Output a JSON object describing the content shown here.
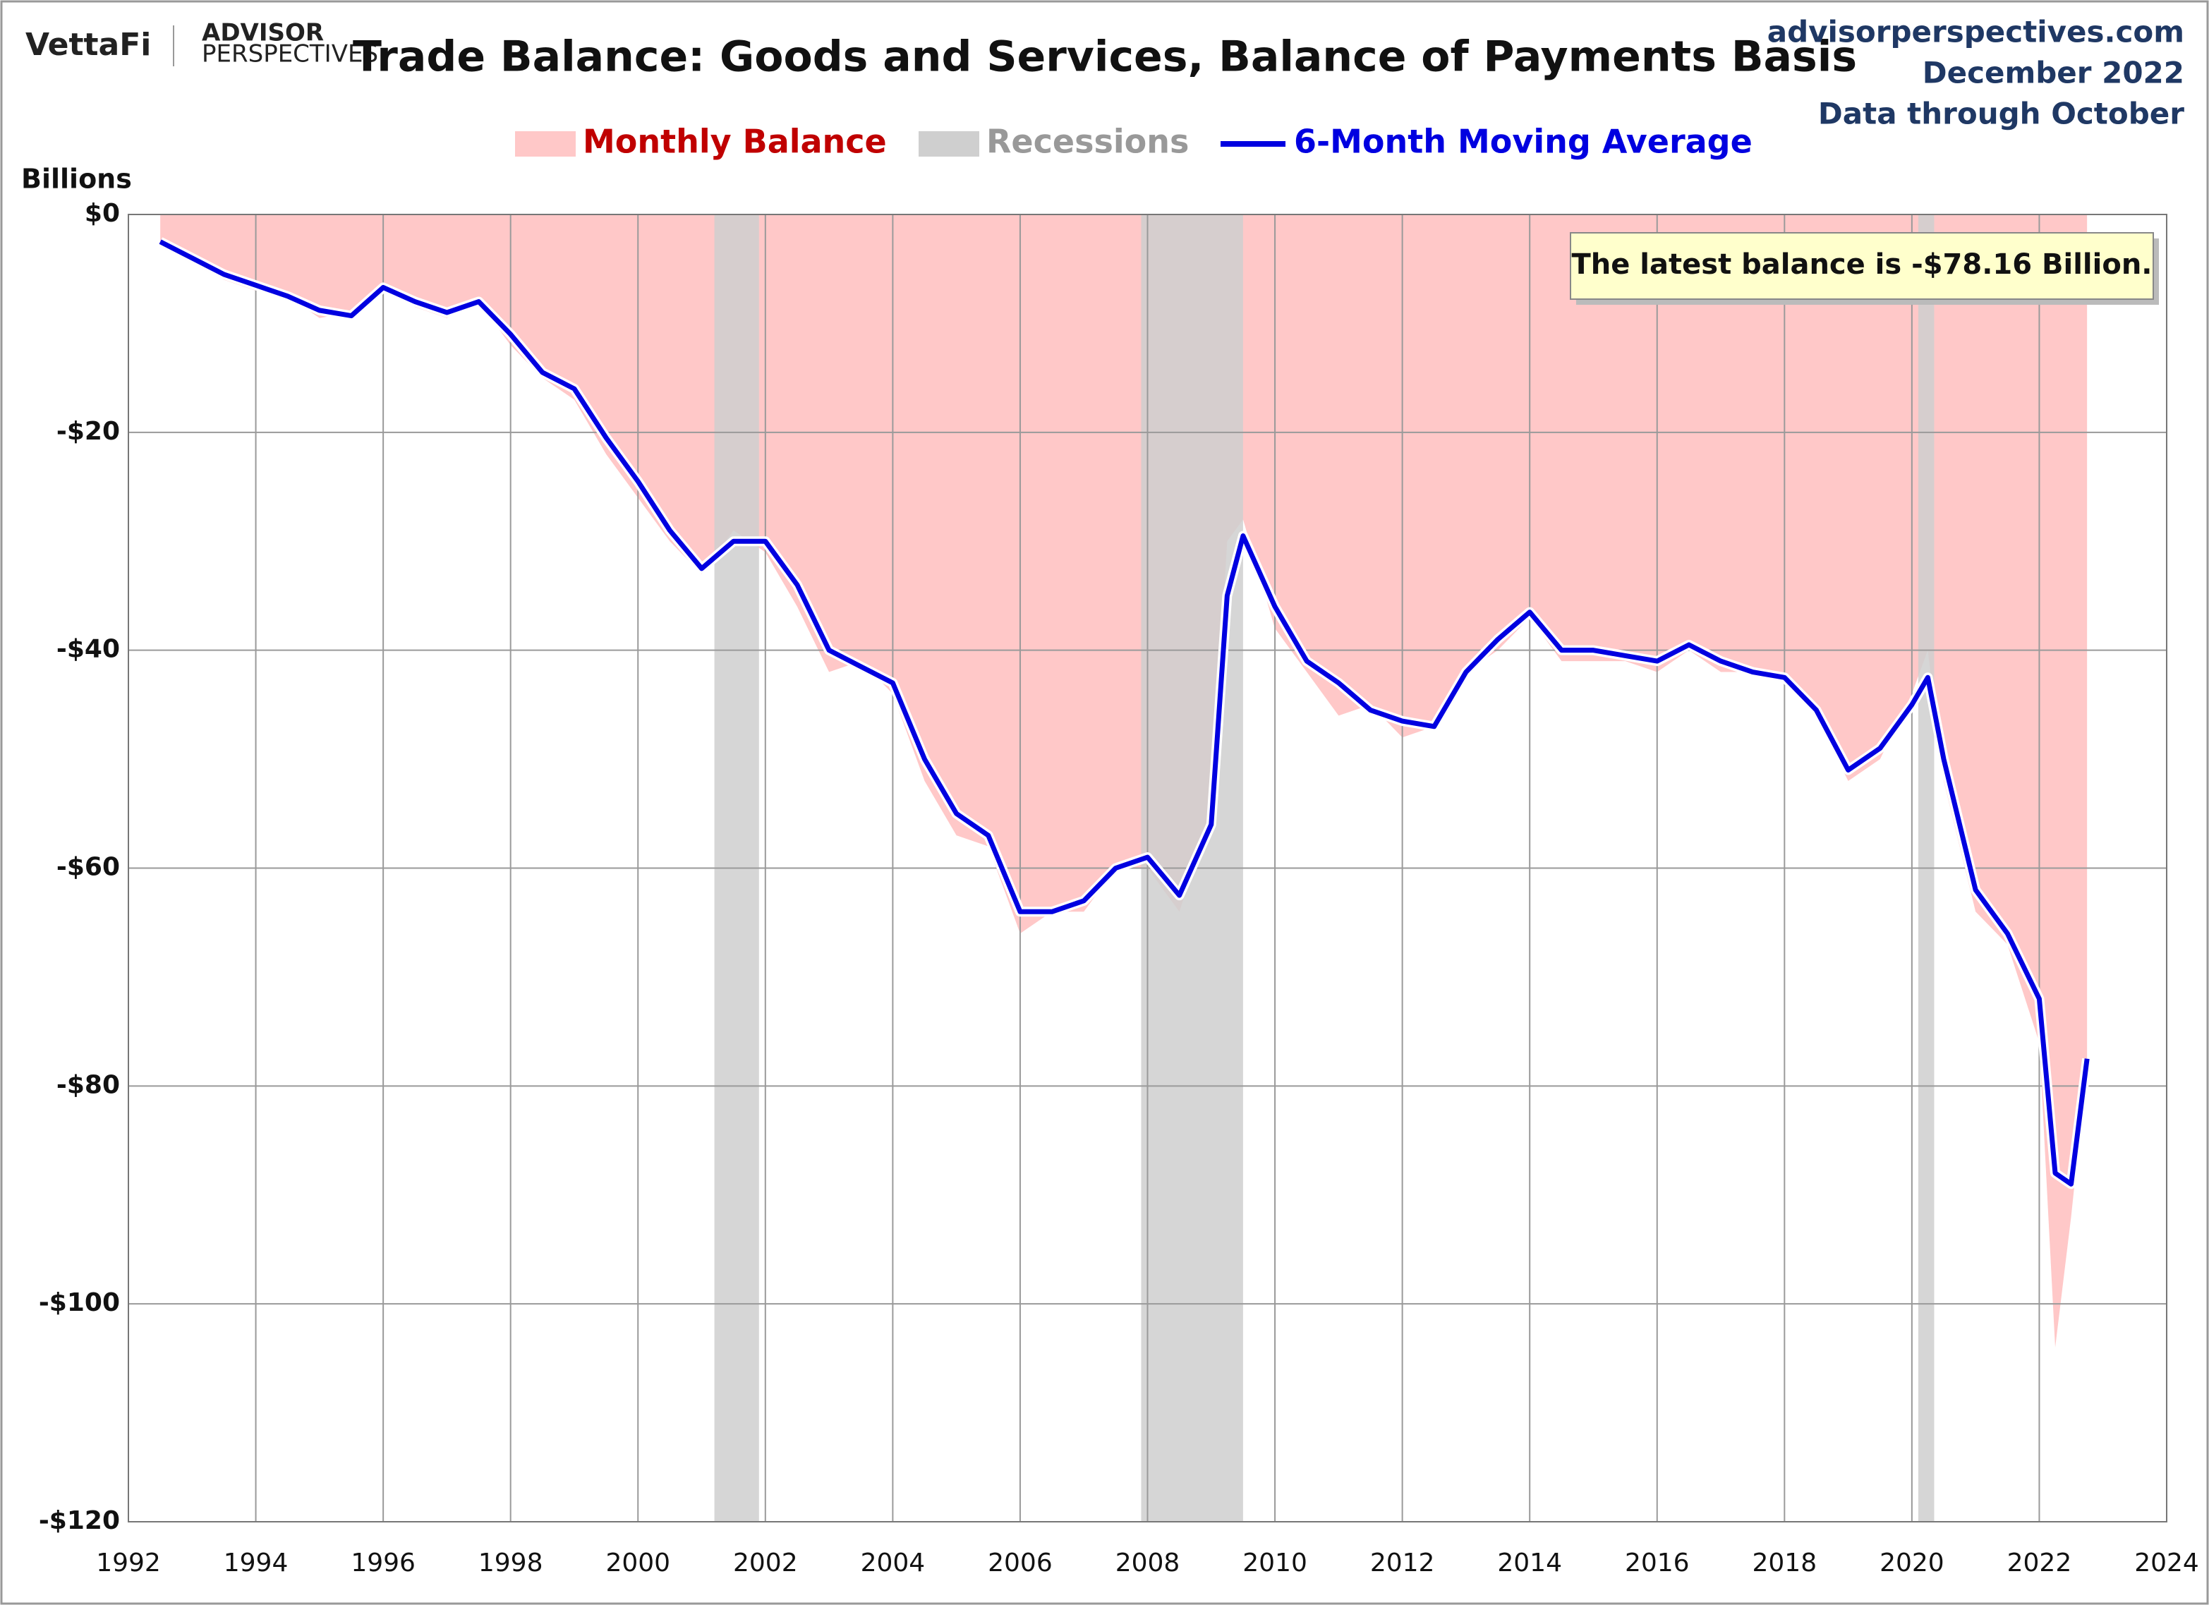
{
  "header": {
    "logo": "VettaFi",
    "brand_top": "ADVISOR",
    "brand_bottom": "PERSPECTIVES",
    "site": "advisorperspectives.com",
    "date": "December 2022",
    "note": "Data through October"
  },
  "chart_data": {
    "type": "area_line",
    "title": "Trade Balance: Goods and Services, Balance of Payments Basis",
    "y_label": "Billions",
    "annotation": "The latest balance is -$78.16 Billion.",
    "x": [
      1992.5,
      1993.0,
      1993.5,
      1994.0,
      1994.5,
      1995.0,
      1995.5,
      1996.0,
      1996.5,
      1997.0,
      1997.5,
      1998.0,
      1998.5,
      1999.0,
      1999.5,
      2000.0,
      2000.5,
      2001.0,
      2001.5,
      2002.0,
      2002.5,
      2003.0,
      2003.5,
      2004.0,
      2004.5,
      2005.0,
      2005.5,
      2006.0,
      2006.5,
      2007.0,
      2007.5,
      2008.0,
      2008.5,
      2009.0,
      2009.25,
      2009.5,
      2010.0,
      2010.5,
      2011.0,
      2011.5,
      2012.0,
      2012.5,
      2013.0,
      2013.5,
      2014.0,
      2014.5,
      2015.0,
      2015.5,
      2016.0,
      2016.5,
      2017.0,
      2017.5,
      2018.0,
      2018.5,
      2019.0,
      2019.5,
      2020.0,
      2020.25,
      2020.5,
      2021.0,
      2021.5,
      2022.0,
      2022.25,
      2022.5,
      2022.75
    ],
    "series": [
      {
        "name": "Monthly Balance",
        "color": "#ffc8c8",
        "text_color": "#c00000",
        "values": [
          -3,
          -4.5,
          -6,
          -7,
          -7.5,
          -9.5,
          -9,
          -6.5,
          -8.5,
          -9.5,
          -8,
          -12,
          -15,
          -17,
          -22,
          -26,
          -30,
          -33,
          -29,
          -31,
          -36,
          -42,
          -41,
          -44,
          -52,
          -57,
          -58,
          -66,
          -64,
          -64,
          -60,
          -60,
          -64,
          -55,
          -30,
          -28,
          -38,
          -42,
          -46,
          -45,
          -48,
          -47,
          -42,
          -40,
          -37,
          -41,
          -41,
          -41,
          -42,
          -40,
          -42,
          -42,
          -43,
          -46,
          -52,
          -50,
          -44,
          -40,
          -52,
          -64,
          -67,
          -76,
          -104,
          -92,
          -78.16
        ]
      },
      {
        "name": "6-Month Moving Average",
        "color": "#0000e0",
        "values": [
          -2.5,
          -4,
          -5.5,
          -6.5,
          -7.5,
          -8.8,
          -9.3,
          -6.7,
          -8,
          -9,
          -8,
          -11,
          -14.5,
          -16,
          -20.5,
          -24.5,
          -29,
          -32.5,
          -30,
          -30,
          -34,
          -40,
          -41.5,
          -43,
          -50,
          -55,
          -57,
          -64,
          -64,
          -63,
          -60,
          -59,
          -62.5,
          -56,
          -35,
          -29.5,
          -36,
          -41,
          -43,
          -45.5,
          -46.5,
          -47,
          -42,
          -39,
          -36.5,
          -40,
          -40,
          -40.5,
          -41,
          -39.5,
          -41,
          -42,
          -42.5,
          -45.5,
          -51,
          -49,
          -45,
          -42.5,
          -50,
          -62,
          -66,
          -72,
          -88,
          -89,
          -77.5
        ]
      }
    ],
    "recessions_name": "Recessions",
    "recessions_color": "#cfcfcf",
    "recessions": [
      [
        2001.2,
        2001.9
      ],
      [
        2007.9,
        2009.5
      ],
      [
        2020.1,
        2020.35
      ]
    ],
    "xlim": [
      1992,
      2024
    ],
    "xticks": [
      1992,
      1994,
      1996,
      1998,
      2000,
      2002,
      2004,
      2006,
      2008,
      2010,
      2012,
      2014,
      2016,
      2018,
      2020,
      2022,
      2024
    ],
    "ylim": [
      -120,
      0
    ],
    "yticks": [
      {
        "value": 0,
        "label": "$0"
      },
      {
        "value": -20,
        "label": "-$20"
      },
      {
        "value": -40,
        "label": "-$40"
      },
      {
        "value": -60,
        "label": "-$60"
      },
      {
        "value": -80,
        "label": "-$80"
      },
      {
        "value": -100,
        "label": "-$100"
      },
      {
        "value": -120,
        "label": "-$120"
      }
    ],
    "grid": true
  }
}
